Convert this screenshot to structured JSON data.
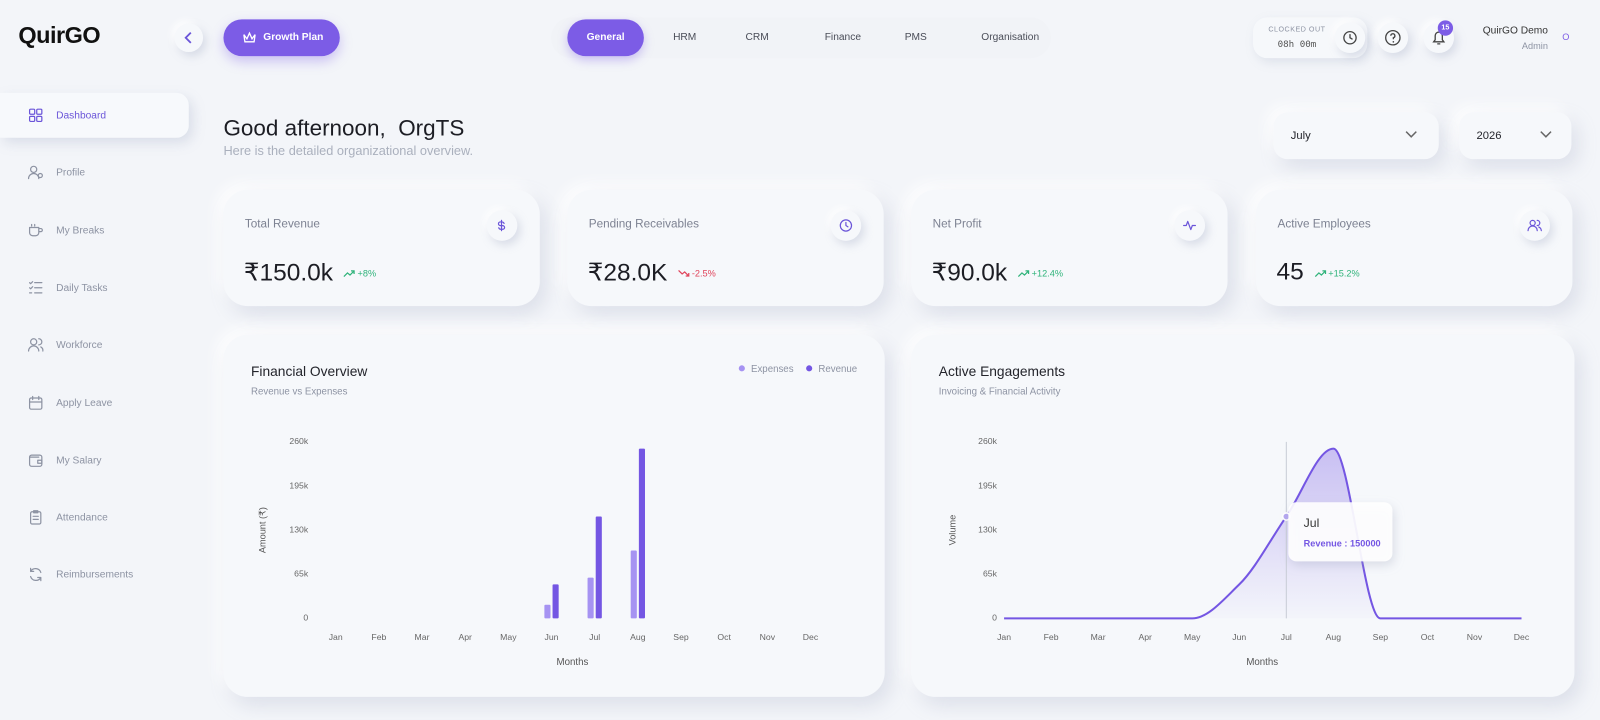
{
  "header": {
    "logo": "QuirGO",
    "growth_plan": "Growth Plan",
    "tabs": [
      "General",
      "HRM",
      "CRM",
      "Finance",
      "PMS",
      "Organisation"
    ],
    "active_tab": 0,
    "clock_status": "CLOCKED OUT",
    "clock_time": "08h 00m",
    "notifications": 15,
    "user_name": "QuirGO Demo",
    "user_role": "Admin",
    "avatar": "O"
  },
  "sidebar": {
    "items": [
      "Dashboard",
      "Profile",
      "My Breaks",
      "Daily Tasks",
      "Workforce",
      "Apply Leave",
      "My Salary",
      "Attendance",
      "Reimbursements"
    ],
    "active": 0
  },
  "greeting": {
    "title": "Good afternoon,  OrgTS",
    "subtitle": "Here is the detailed organizational overview."
  },
  "filters": {
    "month": "July",
    "year": "2026"
  },
  "kpis": [
    {
      "label": "Total Revenue",
      "value": "₹150.0k",
      "change": "+8%",
      "trend": "up"
    },
    {
      "label": "Pending Receivables",
      "value": "₹28.0K",
      "change": "-2.5%",
      "trend": "down"
    },
    {
      "label": "Net Profit",
      "value": "₹90.0k",
      "change": "+12.4%",
      "trend": "up"
    },
    {
      "label": "Active Employees",
      "value": "45",
      "change": "+15.2%",
      "trend": "up"
    }
  ],
  "financial_overview": {
    "type": "bar",
    "title": "Financial Overview",
    "subtitle": "Revenue vs Expenses",
    "categories": [
      "Jan",
      "Feb",
      "Mar",
      "Apr",
      "May",
      "Jun",
      "Jul",
      "Aug",
      "Sep",
      "Oct",
      "Nov",
      "Dec"
    ],
    "series": [
      {
        "name": "Expenses",
        "color": "#a693f2",
        "values": [
          0,
          0,
          0,
          0,
          0,
          20000,
          60000,
          100000,
          0,
          0,
          0,
          0
        ]
      },
      {
        "name": "Revenue",
        "color": "#7456e3",
        "values": [
          0,
          0,
          0,
          0,
          0,
          50000,
          150000,
          250000,
          0,
          0,
          0,
          0
        ]
      }
    ],
    "ylim": [
      0,
      260000
    ],
    "yticks": [
      0,
      {
        "value": 65000,
        "label": "65k"
      },
      {
        "value": 130000,
        "label": "130k"
      },
      {
        "value": 195000,
        "label": "195k"
      },
      {
        "value": 260000,
        "label": "260k"
      }
    ],
    "y_label": "Amount (₹)",
    "x_label": "Months",
    "legend": "top-right"
  },
  "active_engagements": {
    "type": "area",
    "title": "Active Engagements",
    "subtitle": "Invoicing & Financial Activity",
    "categories": [
      "Jan",
      "Feb",
      "Mar",
      "Apr",
      "May",
      "Jun",
      "Jul",
      "Aug",
      "Sep",
      "Oct",
      "Nov",
      "Dec"
    ],
    "series": [
      {
        "name": "Revenue",
        "color": "#7456e3",
        "values": [
          0,
          0,
          0,
          0,
          0,
          50000,
          150000,
          250000,
          0,
          0,
          0,
          0
        ]
      }
    ],
    "ylim": [
      0,
      260000
    ],
    "yticks": [
      0,
      {
        "value": 65000,
        "label": "65k"
      },
      {
        "value": 130000,
        "label": "130k"
      },
      {
        "value": 195000,
        "label": "195k"
      },
      {
        "value": 260000,
        "label": "260k"
      }
    ],
    "y_label": "Volume",
    "x_label": "Months",
    "tooltip": {
      "title": "Jul",
      "text": "Revenue : 150000"
    }
  }
}
